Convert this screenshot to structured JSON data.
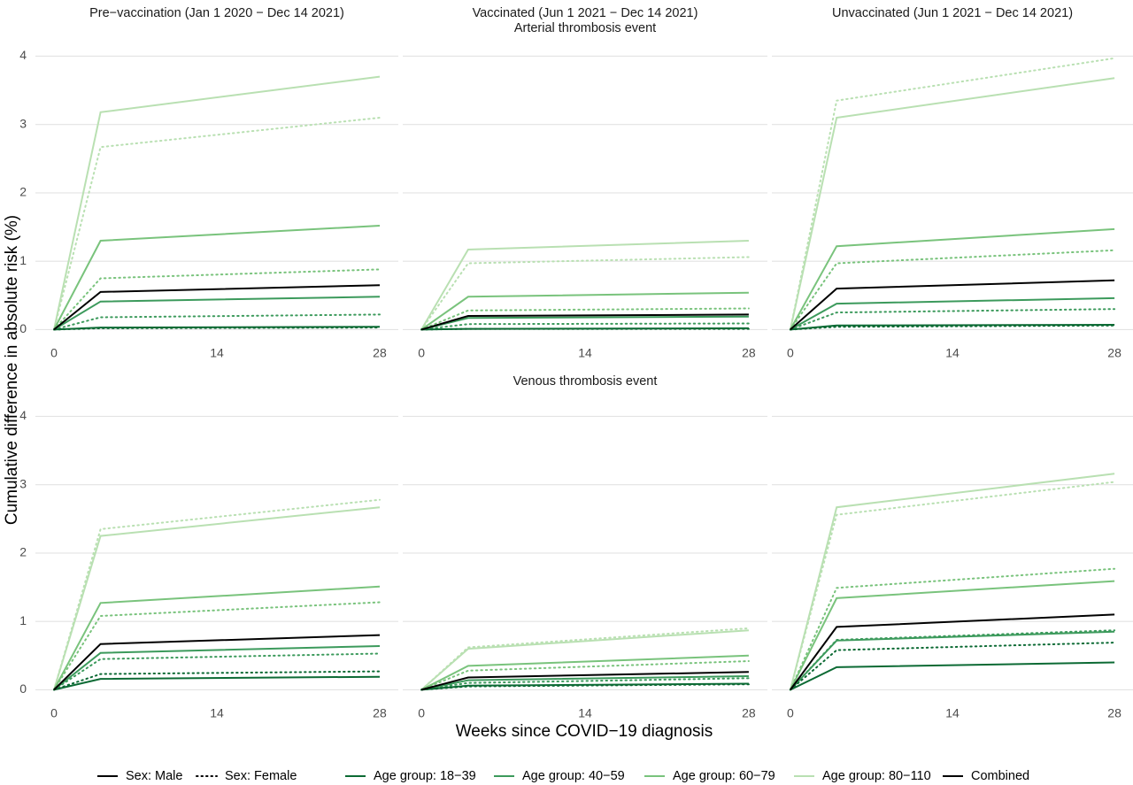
{
  "strip_titles": [
    "Pre−vaccination (Jan 1 2020 − Dec 14 2021)",
    "Vaccinated (Jun 1 2021 − Dec 14 2021)",
    "Unvaccinated (Jun 1 2021 − Dec 14 2021)"
  ],
  "row_titles": [
    "Arterial thrombosis event",
    "Venous thrombosis event"
  ],
  "y_label": "Cumulative difference in absolute risk  (%)",
  "x_label": "Weeks since COVID−19 diagnosis",
  "legend": [
    {
      "label": "Sex: Male",
      "color": "#000000",
      "dash": "solid"
    },
    {
      "label": "Sex: Female",
      "color": "#000000",
      "dash": "dotted"
    },
    {
      "label": "Age group: 18−39",
      "color": "#0c6a34",
      "dash": "solid"
    },
    {
      "label": "Age group: 40−59",
      "color": "#3c9a5c",
      "dash": "solid"
    },
    {
      "label": "Age group: 60−79",
      "color": "#79c37c",
      "dash": "solid"
    },
    {
      "label": "Age group: 80−110",
      "color": "#b9e0b2",
      "dash": "solid"
    },
    {
      "label": "Combined",
      "color": "#000000",
      "dash": "solid"
    }
  ],
  "chart_data": [
    {
      "type": "line",
      "x": [
        0,
        4,
        28
      ],
      "xlim": [
        -1.6,
        29.6
      ],
      "ylim": [
        -0.15,
        4.2
      ],
      "xticks": [
        0,
        14,
        28
      ],
      "yticks": [
        0,
        1,
        2,
        3,
        4
      ],
      "grid": true,
      "series": [
        {
          "color": "#b9e0b2",
          "dash": "solid",
          "values": [
            0,
            3.18,
            3.7
          ]
        },
        {
          "color": "#b9e0b2",
          "dash": "dotted",
          "values": [
            0,
            2.67,
            3.1
          ]
        },
        {
          "color": "#79c37c",
          "dash": "solid",
          "values": [
            0,
            1.3,
            1.52
          ]
        },
        {
          "color": "#79c37c",
          "dash": "dotted",
          "values": [
            0,
            0.75,
            0.88
          ]
        },
        {
          "color": "#3c9a5c",
          "dash": "solid",
          "values": [
            0,
            0.41,
            0.48
          ]
        },
        {
          "color": "#3c9a5c",
          "dash": "dotted",
          "values": [
            0,
            0.18,
            0.22
          ]
        },
        {
          "color": "#0c6a34",
          "dash": "solid",
          "values": [
            0,
            0.03,
            0.04
          ]
        },
        {
          "color": "#0c6a34",
          "dash": "dotted",
          "values": [
            0,
            0.02,
            0.03
          ]
        },
        {
          "color": "#000000",
          "dash": "solid",
          "values": [
            0,
            0.55,
            0.65
          ]
        }
      ]
    },
    {
      "type": "line",
      "x": [
        0,
        4,
        28
      ],
      "xlim": [
        -1.6,
        29.6
      ],
      "ylim": [
        -0.15,
        4.2
      ],
      "xticks": [
        0,
        14,
        28
      ],
      "yticks": [
        0,
        1,
        2,
        3,
        4
      ],
      "grid": true,
      "series": [
        {
          "color": "#b9e0b2",
          "dash": "solid",
          "values": [
            0,
            1.17,
            1.3
          ]
        },
        {
          "color": "#b9e0b2",
          "dash": "dotted",
          "values": [
            0,
            0.97,
            1.06
          ]
        },
        {
          "color": "#79c37c",
          "dash": "solid",
          "values": [
            0,
            0.48,
            0.54
          ]
        },
        {
          "color": "#79c37c",
          "dash": "dotted",
          "values": [
            0,
            0.28,
            0.31
          ]
        },
        {
          "color": "#3c9a5c",
          "dash": "solid",
          "values": [
            0,
            0.17,
            0.19
          ]
        },
        {
          "color": "#3c9a5c",
          "dash": "dotted",
          "values": [
            0,
            0.08,
            0.09
          ]
        },
        {
          "color": "#0c6a34",
          "dash": "solid",
          "values": [
            0,
            0.01,
            0.02
          ]
        },
        {
          "color": "#0c6a34",
          "dash": "dotted",
          "values": [
            0,
            0.01,
            0.01
          ]
        },
        {
          "color": "#000000",
          "dash": "solid",
          "values": [
            0,
            0.2,
            0.22
          ]
        }
      ]
    },
    {
      "type": "line",
      "x": [
        0,
        4,
        28
      ],
      "xlim": [
        -1.6,
        29.6
      ],
      "ylim": [
        -0.15,
        4.2
      ],
      "xticks": [
        0,
        14,
        28
      ],
      "yticks": [
        0,
        1,
        2,
        3,
        4
      ],
      "grid": true,
      "series": [
        {
          "color": "#b9e0b2",
          "dash": "solid",
          "values": [
            0,
            3.1,
            3.68
          ]
        },
        {
          "color": "#b9e0b2",
          "dash": "dotted",
          "values": [
            0,
            3.35,
            3.97
          ]
        },
        {
          "color": "#79c37c",
          "dash": "solid",
          "values": [
            0,
            1.22,
            1.47
          ]
        },
        {
          "color": "#79c37c",
          "dash": "dotted",
          "values": [
            0,
            0.97,
            1.16
          ]
        },
        {
          "color": "#3c9a5c",
          "dash": "solid",
          "values": [
            0,
            0.38,
            0.46
          ]
        },
        {
          "color": "#3c9a5c",
          "dash": "dotted",
          "values": [
            0,
            0.25,
            0.3
          ]
        },
        {
          "color": "#0c6a34",
          "dash": "solid",
          "values": [
            0,
            0.06,
            0.07
          ]
        },
        {
          "color": "#0c6a34",
          "dash": "dotted",
          "values": [
            0,
            0.04,
            0.06
          ]
        },
        {
          "color": "#000000",
          "dash": "solid",
          "values": [
            0,
            0.6,
            0.72
          ]
        }
      ]
    },
    {
      "type": "line",
      "x": [
        0,
        4,
        28
      ],
      "xlim": [
        -1.6,
        29.6
      ],
      "ylim": [
        -0.15,
        4.2
      ],
      "xticks": [
        0,
        14,
        28
      ],
      "yticks": [
        0,
        1,
        2,
        3,
        4
      ],
      "grid": true,
      "series": [
        {
          "color": "#b9e0b2",
          "dash": "solid",
          "values": [
            0,
            2.25,
            2.67
          ]
        },
        {
          "color": "#b9e0b2",
          "dash": "dotted",
          "values": [
            0,
            2.35,
            2.78
          ]
        },
        {
          "color": "#79c37c",
          "dash": "solid",
          "values": [
            0,
            1.27,
            1.51
          ]
        },
        {
          "color": "#79c37c",
          "dash": "dotted",
          "values": [
            0,
            1.08,
            1.28
          ]
        },
        {
          "color": "#3c9a5c",
          "dash": "solid",
          "values": [
            0,
            0.54,
            0.64
          ]
        },
        {
          "color": "#3c9a5c",
          "dash": "dotted",
          "values": [
            0,
            0.45,
            0.53
          ]
        },
        {
          "color": "#0c6a34",
          "dash": "solid",
          "values": [
            0,
            0.16,
            0.19
          ]
        },
        {
          "color": "#0c6a34",
          "dash": "dotted",
          "values": [
            0,
            0.23,
            0.27
          ]
        },
        {
          "color": "#000000",
          "dash": "solid",
          "values": [
            0,
            0.67,
            0.8
          ]
        }
      ]
    },
    {
      "type": "line",
      "x": [
        0,
        4,
        28
      ],
      "xlim": [
        -1.6,
        29.6
      ],
      "ylim": [
        -0.15,
        4.2
      ],
      "xticks": [
        0,
        14,
        28
      ],
      "yticks": [
        0,
        1,
        2,
        3,
        4
      ],
      "grid": true,
      "series": [
        {
          "color": "#b9e0b2",
          "dash": "solid",
          "values": [
            0,
            0.6,
            0.87
          ]
        },
        {
          "color": "#b9e0b2",
          "dash": "dotted",
          "values": [
            0,
            0.62,
            0.9
          ]
        },
        {
          "color": "#79c37c",
          "dash": "solid",
          "values": [
            0,
            0.35,
            0.5
          ]
        },
        {
          "color": "#79c37c",
          "dash": "dotted",
          "values": [
            0,
            0.28,
            0.42
          ]
        },
        {
          "color": "#3c9a5c",
          "dash": "solid",
          "values": [
            0,
            0.14,
            0.2
          ]
        },
        {
          "color": "#3c9a5c",
          "dash": "dotted",
          "values": [
            0,
            0.1,
            0.17
          ]
        },
        {
          "color": "#0c6a34",
          "dash": "solid",
          "values": [
            0,
            0.06,
            0.09
          ]
        },
        {
          "color": "#0c6a34",
          "dash": "dotted",
          "values": [
            0,
            0.05,
            0.08
          ]
        },
        {
          "color": "#000000",
          "dash": "solid",
          "values": [
            0,
            0.18,
            0.26
          ]
        }
      ]
    },
    {
      "type": "line",
      "x": [
        0,
        4,
        28
      ],
      "xlim": [
        -1.6,
        29.6
      ],
      "ylim": [
        -0.15,
        4.2
      ],
      "xticks": [
        0,
        14,
        28
      ],
      "yticks": [
        0,
        1,
        2,
        3,
        4
      ],
      "grid": true,
      "series": [
        {
          "color": "#b9e0b2",
          "dash": "solid",
          "values": [
            0,
            2.67,
            3.16
          ]
        },
        {
          "color": "#b9e0b2",
          "dash": "dotted",
          "values": [
            0,
            2.56,
            3.04
          ]
        },
        {
          "color": "#79c37c",
          "dash": "solid",
          "values": [
            0,
            1.34,
            1.59
          ]
        },
        {
          "color": "#79c37c",
          "dash": "dotted",
          "values": [
            0,
            1.49,
            1.77
          ]
        },
        {
          "color": "#3c9a5c",
          "dash": "solid",
          "values": [
            0,
            0.72,
            0.85
          ]
        },
        {
          "color": "#3c9a5c",
          "dash": "dotted",
          "values": [
            0,
            0.73,
            0.87
          ]
        },
        {
          "color": "#0c6a34",
          "dash": "solid",
          "values": [
            0,
            0.33,
            0.4
          ]
        },
        {
          "color": "#0c6a34",
          "dash": "dotted",
          "values": [
            0,
            0.58,
            0.69
          ]
        },
        {
          "color": "#000000",
          "dash": "solid",
          "values": [
            0,
            0.92,
            1.1
          ]
        }
      ]
    }
  ]
}
